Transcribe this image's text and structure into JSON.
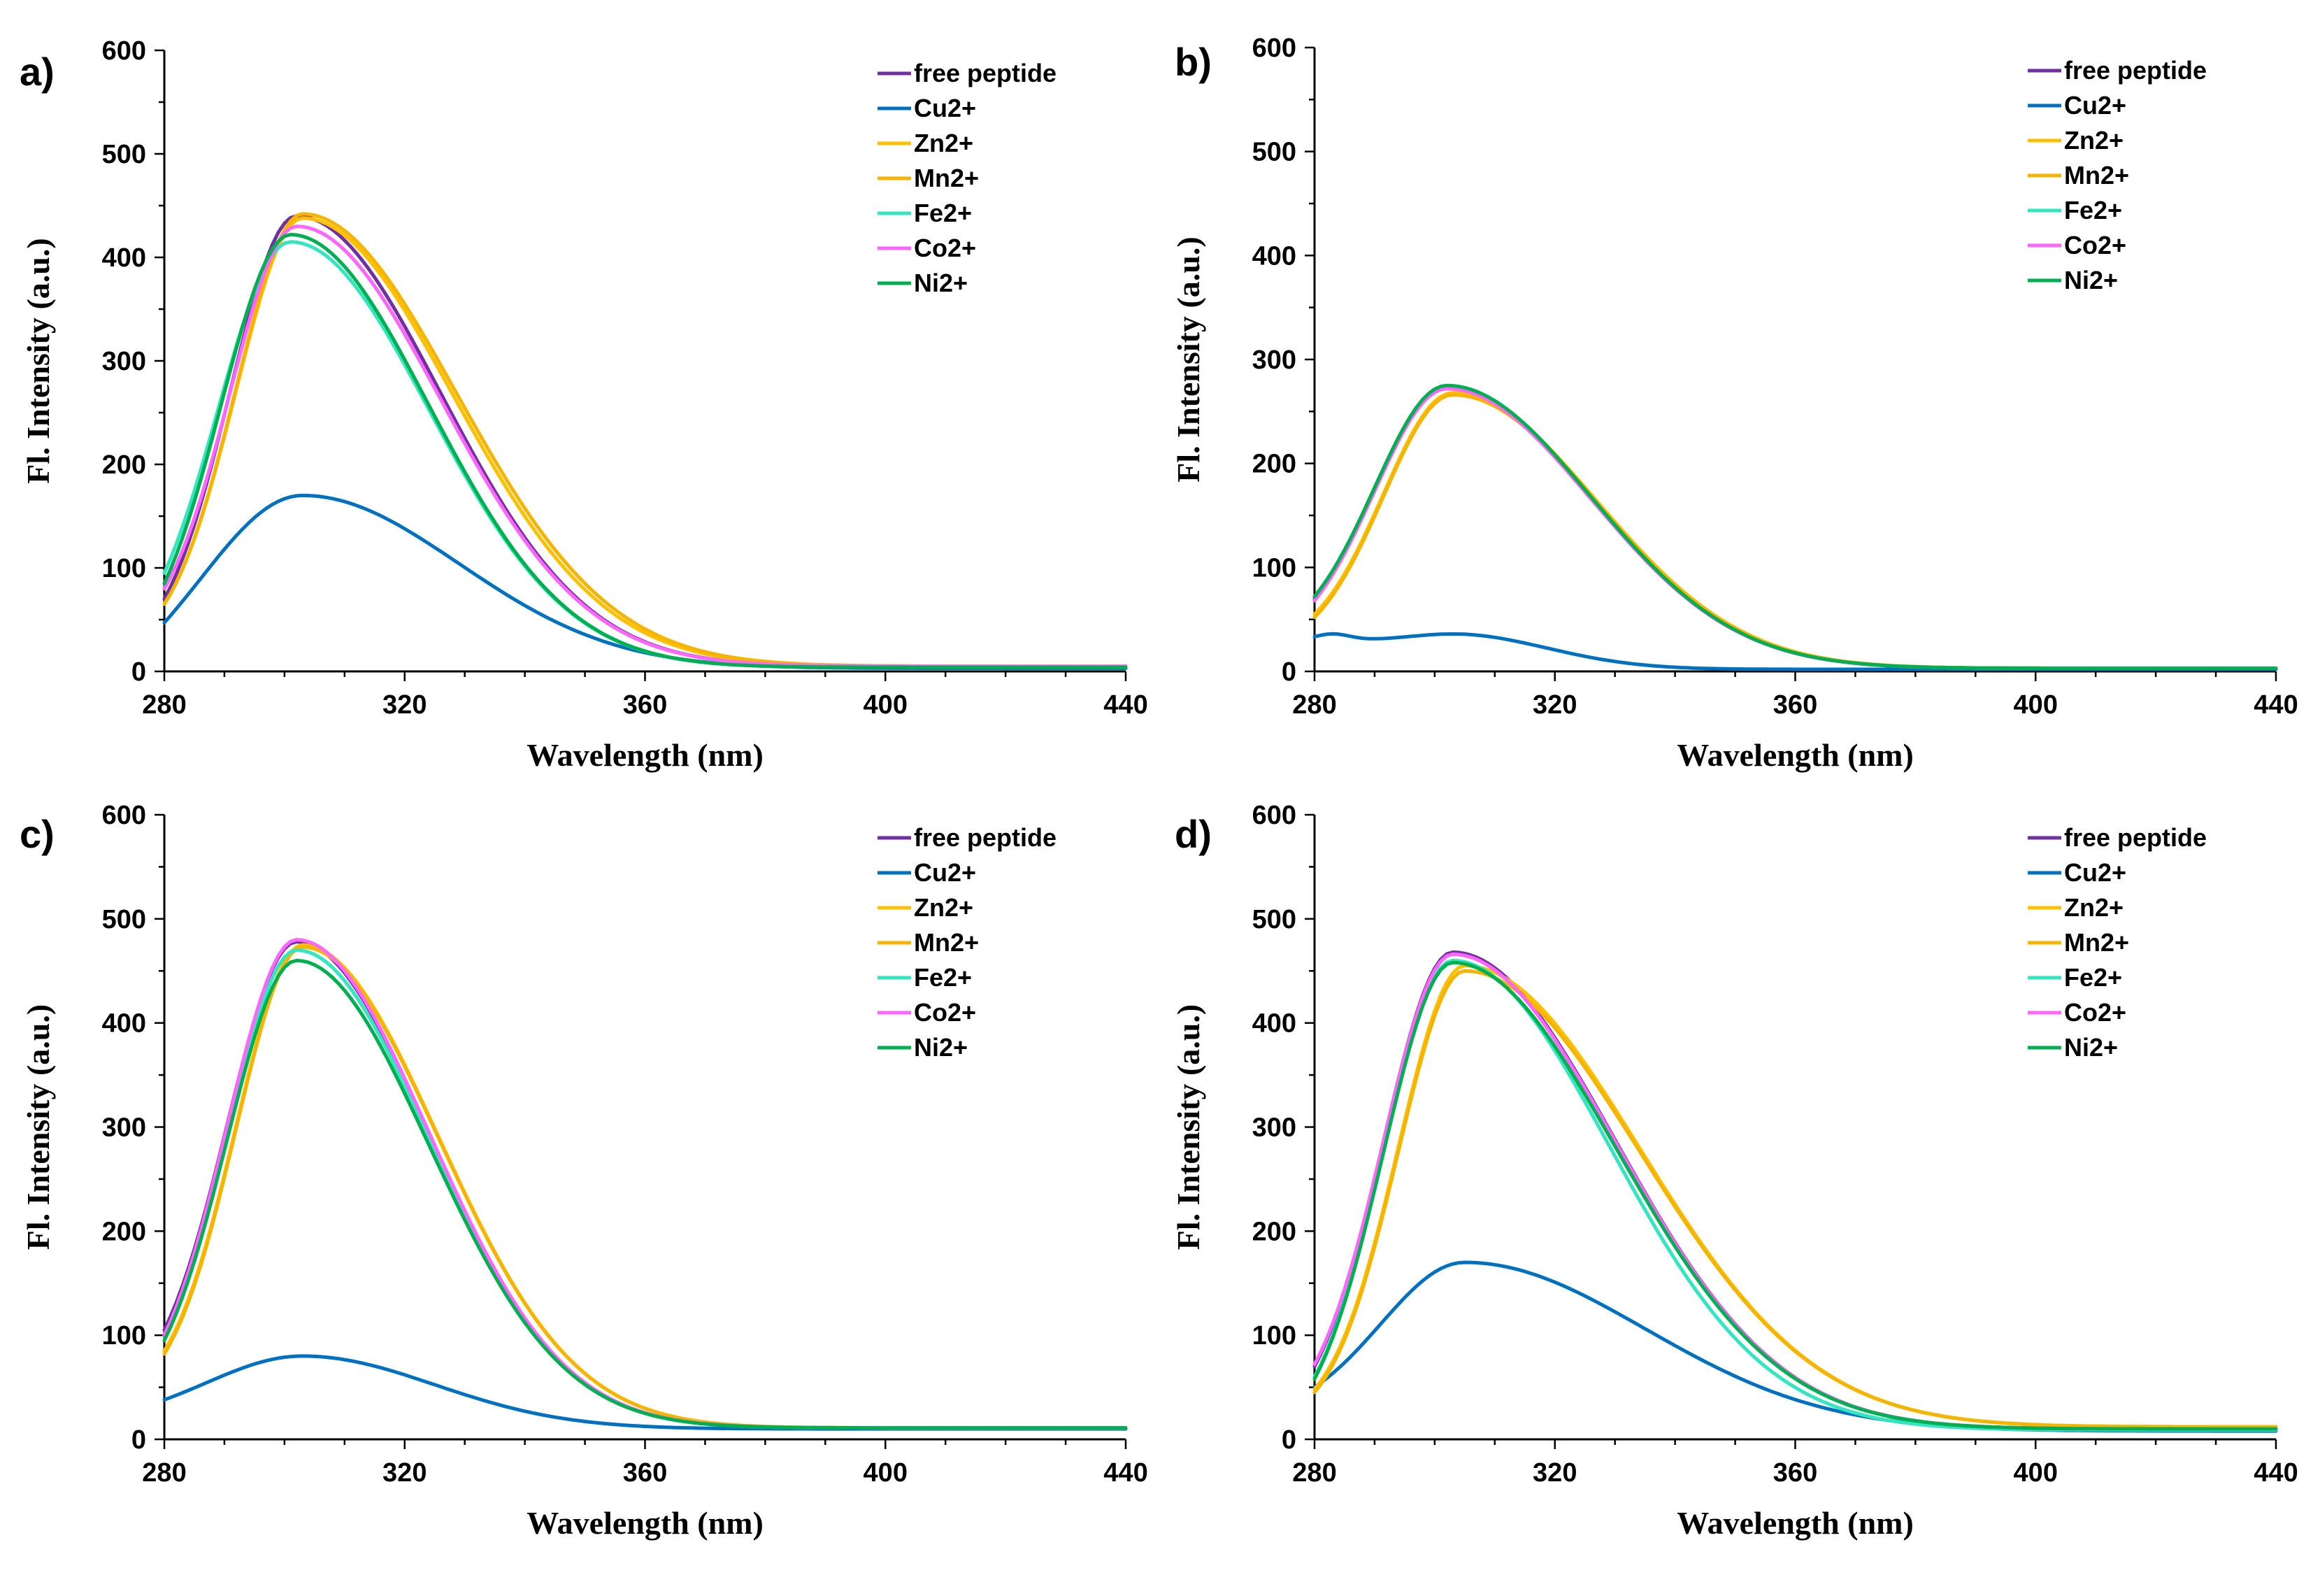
{
  "chart_data": [
    {
      "type": "line",
      "panel": "a)",
      "xlabel": "Wavelength (nm)",
      "ylabel": "Fl. Intensity (a.u.)",
      "xlim": [
        280,
        440
      ],
      "ylim": [
        0,
        600
      ],
      "xticks": [
        "280",
        "320",
        "360",
        "400",
        "440"
      ],
      "yticks": [
        "0",
        "100",
        "200",
        "300",
        "400",
        "500",
        "600"
      ],
      "legend_position": "top-right",
      "series": [
        {
          "name": "free peptide",
          "color": "#7030A0",
          "peak": 440,
          "center": 302,
          "start": 70,
          "tail": 5,
          "sigma_l": 11,
          "sigma_r": 24
        },
        {
          "name": "Cu2+",
          "color": "#0070C0",
          "peak": 170,
          "center": 303,
          "start": 47,
          "tail": 3,
          "sigma_l": 17,
          "sigma_r": 26
        },
        {
          "name": "Zn2+",
          "color": "#FFC000",
          "peak": 438,
          "center": 303,
          "start": 65,
          "tail": 5,
          "sigma_l": 11,
          "sigma_r": 25
        },
        {
          "name": "Mn2+",
          "color": "#F4B400",
          "peak": 442,
          "center": 303,
          "start": 65,
          "tail": 5,
          "sigma_l": 11,
          "sigma_r": 25.5
        },
        {
          "name": "Fe2+",
          "color": "#33E6BF",
          "peak": 415,
          "center": 301,
          "start": 95,
          "tail": 4,
          "sigma_l": 12,
          "sigma_r": 23
        },
        {
          "name": "Co2+",
          "color": "#FF66FF",
          "peak": 430,
          "center": 302,
          "start": 80,
          "tail": 5,
          "sigma_l": 11,
          "sigma_r": 24
        },
        {
          "name": "Ni2+",
          "color": "#00B050",
          "peak": 422,
          "center": 301,
          "start": 85,
          "tail": 4,
          "sigma_l": 11.5,
          "sigma_r": 23
        }
      ]
    },
    {
      "type": "line",
      "panel": "b)",
      "xlabel": "Wavelength (nm)",
      "ylabel": "Fl. Intensity (a.u.)",
      "xlim": [
        280,
        440
      ],
      "ylim": [
        0,
        600
      ],
      "xticks": [
        "280",
        "320",
        "360",
        "400",
        "440"
      ],
      "yticks": [
        "0",
        "100",
        "200",
        "300",
        "400",
        "500",
        "600"
      ],
      "legend_position": "top-right",
      "series": [
        {
          "name": "free peptide",
          "color": "#7030A0",
          "peak": 272,
          "center": 302,
          "start": 70,
          "tail": 3,
          "sigma_l": 12,
          "sigma_r": 24
        },
        {
          "name": "Cu2+",
          "color": "#0070C0",
          "peak": 35,
          "center": 303,
          "start": 35,
          "tail": 1,
          "sigma_l": 30,
          "sigma_r": 22
        },
        {
          "name": "Zn2+",
          "color": "#FFC000",
          "peak": 268,
          "center": 303,
          "start": 55,
          "tail": 3,
          "sigma_l": 11.5,
          "sigma_r": 24
        },
        {
          "name": "Mn2+",
          "color": "#F4B400",
          "peak": 266,
          "center": 303,
          "start": 52,
          "tail": 3,
          "sigma_l": 11.5,
          "sigma_r": 24
        },
        {
          "name": "Fe2+",
          "color": "#33E6BF",
          "peak": 273,
          "center": 302,
          "start": 72,
          "tail": 3,
          "sigma_l": 12,
          "sigma_r": 24
        },
        {
          "name": "Co2+",
          "color": "#FF66FF",
          "peak": 272,
          "center": 302,
          "start": 68,
          "tail": 3,
          "sigma_l": 12,
          "sigma_r": 24
        },
        {
          "name": "Ni2+",
          "color": "#00B050",
          "peak": 275,
          "center": 302,
          "start": 72,
          "tail": 3,
          "sigma_l": 12,
          "sigma_r": 24
        }
      ]
    },
    {
      "type": "line",
      "panel": "c)",
      "xlabel": "Wavelength (nm)",
      "ylabel": "Fl. Intensity (a.u.)",
      "xlim": [
        280,
        440
      ],
      "ylim": [
        0,
        600
      ],
      "xticks": [
        "280",
        "320",
        "360",
        "400",
        "440"
      ],
      "yticks": [
        "0",
        "100",
        "200",
        "300",
        "400",
        "500",
        "600"
      ],
      "legend_position": "top-right",
      "series": [
        {
          "name": "free peptide",
          "color": "#7030A0",
          "peak": 478,
          "center": 302,
          "start": 105,
          "tail": 11,
          "sigma_l": 11.5,
          "sigma_r": 22
        },
        {
          "name": "Cu2+",
          "color": "#0070C0",
          "peak": 80,
          "center": 303,
          "start": 38,
          "tail": 10,
          "sigma_l": 16,
          "sigma_r": 22
        },
        {
          "name": "Zn2+",
          "color": "#FFC000",
          "peak": 475,
          "center": 303,
          "start": 85,
          "tail": 11,
          "sigma_l": 11,
          "sigma_r": 22.5
        },
        {
          "name": "Mn2+",
          "color": "#F4B400",
          "peak": 473,
          "center": 303,
          "start": 82,
          "tail": 11,
          "sigma_l": 11,
          "sigma_r": 22.5
        },
        {
          "name": "Fe2+",
          "color": "#33E6BF",
          "peak": 470,
          "center": 302,
          "start": 95,
          "tail": 11,
          "sigma_l": 11.5,
          "sigma_r": 22
        },
        {
          "name": "Co2+",
          "color": "#FF66FF",
          "peak": 480,
          "center": 302,
          "start": 100,
          "tail": 11,
          "sigma_l": 11.5,
          "sigma_r": 22
        },
        {
          "name": "Ni2+",
          "color": "#00B050",
          "peak": 460,
          "center": 302,
          "start": 95,
          "tail": 11,
          "sigma_l": 11.5,
          "sigma_r": 22
        }
      ]
    },
    {
      "type": "line",
      "panel": "d)",
      "xlabel": "Wavelength (nm)",
      "ylabel": "Fl. Intensity (a.u.)",
      "xlim": [
        280,
        440
      ],
      "ylim": [
        0,
        600
      ],
      "xticks": [
        "280",
        "320",
        "360",
        "400",
        "440"
      ],
      "yticks": [
        "0",
        "100",
        "200",
        "300",
        "400",
        "500",
        "600"
      ],
      "legend_position": "top-right",
      "series": [
        {
          "name": "free peptide",
          "color": "#7030A0",
          "peak": 468,
          "center": 303,
          "start": 70,
          "tail": 10,
          "sigma_l": 11.5,
          "sigma_r": 27
        },
        {
          "name": "Cu2+",
          "color": "#0070C0",
          "peak": 170,
          "center": 305,
          "start": 50,
          "tail": 8,
          "sigma_l": 14,
          "sigma_r": 30
        },
        {
          "name": "Zn2+",
          "color": "#FFC000",
          "peak": 455,
          "center": 305,
          "start": 48,
          "tail": 12,
          "sigma_l": 11,
          "sigma_r": 29
        },
        {
          "name": "Mn2+",
          "color": "#F4B400",
          "peak": 450,
          "center": 305,
          "start": 45,
          "tail": 12,
          "sigma_l": 11,
          "sigma_r": 29
        },
        {
          "name": "Fe2+",
          "color": "#33E6BF",
          "peak": 460,
          "center": 303,
          "start": 60,
          "tail": 9,
          "sigma_l": 11.5,
          "sigma_r": 26
        },
        {
          "name": "Co2+",
          "color": "#FF66FF",
          "peak": 466,
          "center": 303,
          "start": 72,
          "tail": 10,
          "sigma_l": 11.5,
          "sigma_r": 27
        },
        {
          "name": "Ni2+",
          "color": "#00B050",
          "peak": 458,
          "center": 303,
          "start": 58,
          "tail": 10,
          "sigma_l": 11.5,
          "sigma_r": 27
        }
      ]
    }
  ]
}
